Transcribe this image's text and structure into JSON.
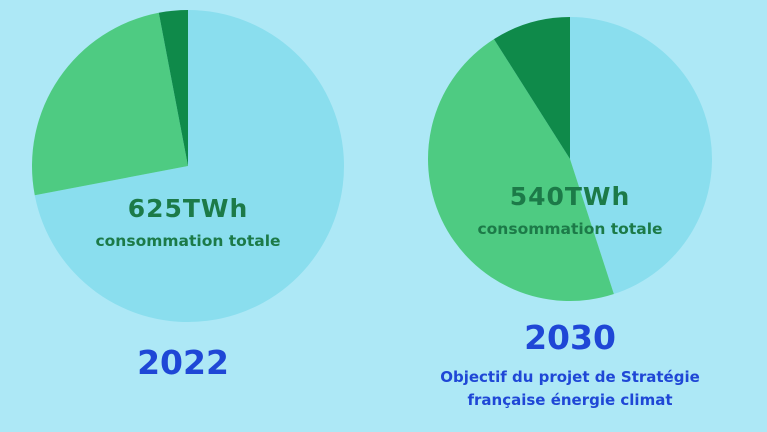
{
  "chart_data": [
    {
      "type": "pie",
      "title": "2022",
      "center_value": "625TWh",
      "center_caption": "consommation totale",
      "slices": [
        {
          "value": 72,
          "color": "#8adeee"
        },
        {
          "value": 25,
          "color": "#4ecb82"
        },
        {
          "value": 3,
          "color": "#0f8a4a"
        }
      ]
    },
    {
      "type": "pie",
      "title": "2030",
      "subtitle_lines": [
        "Objectif du projet de Stratégie",
        "française énergie climat"
      ],
      "center_value": "540TWh",
      "center_caption": "consommation totale",
      "slices": [
        {
          "value": 45,
          "color": "#8adeee"
        },
        {
          "value": 46,
          "color": "#4ecb82"
        },
        {
          "value": 9,
          "color": "#0f8a4a"
        }
      ]
    }
  ]
}
